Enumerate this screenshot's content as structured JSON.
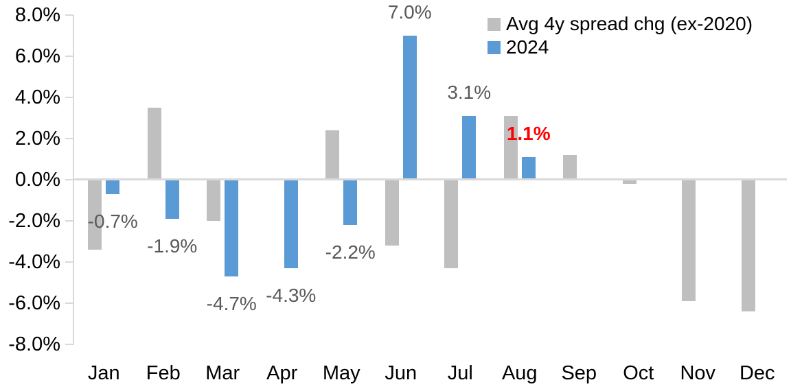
{
  "chart_data": {
    "type": "bar",
    "title": "",
    "xlabel": "",
    "ylabel": "",
    "categories": [
      "Jan",
      "Feb",
      "Mar",
      "Apr",
      "May",
      "Jun",
      "Jul",
      "Aug",
      "Sep",
      "Oct",
      "Nov",
      "Dec"
    ],
    "series": [
      {
        "name": "Avg 4y spread chg (ex-2020)",
        "color": "#BFBFBF",
        "values": [
          -3.4,
          3.5,
          -2.0,
          0.0,
          2.4,
          -3.2,
          -4.3,
          3.1,
          1.2,
          -0.2,
          -5.9,
          -6.4
        ]
      },
      {
        "name": "2024",
        "color": "#5B9BD5",
        "values": [
          -0.7,
          -1.9,
          -4.7,
          -4.3,
          -2.2,
          7.0,
          3.1,
          1.1,
          null,
          null,
          null,
          null
        ],
        "data_labels": [
          "-0.7%",
          "-1.9%",
          "-4.7%",
          "-4.3%",
          "-2.2%",
          "7.0%",
          "3.1%",
          "1.1%",
          null,
          null,
          null,
          null
        ],
        "label_color": "#595959",
        "label_highlight": {
          "index": 7,
          "color": "#FF0000",
          "bold": true
        }
      }
    ],
    "y_axis": {
      "tick_labels": [
        "8.0%",
        "6.0%",
        "4.0%",
        "2.0%",
        "0.0%",
        "-2.0%",
        "-4.0%",
        "-6.0%",
        "-8.0%"
      ],
      "min": -8.0,
      "max": 8.0,
      "tick_step": 2.0
    },
    "legend_position": "top-right",
    "grid": "off",
    "axis_color": "#D9D9D9",
    "text_color": "#000000"
  }
}
